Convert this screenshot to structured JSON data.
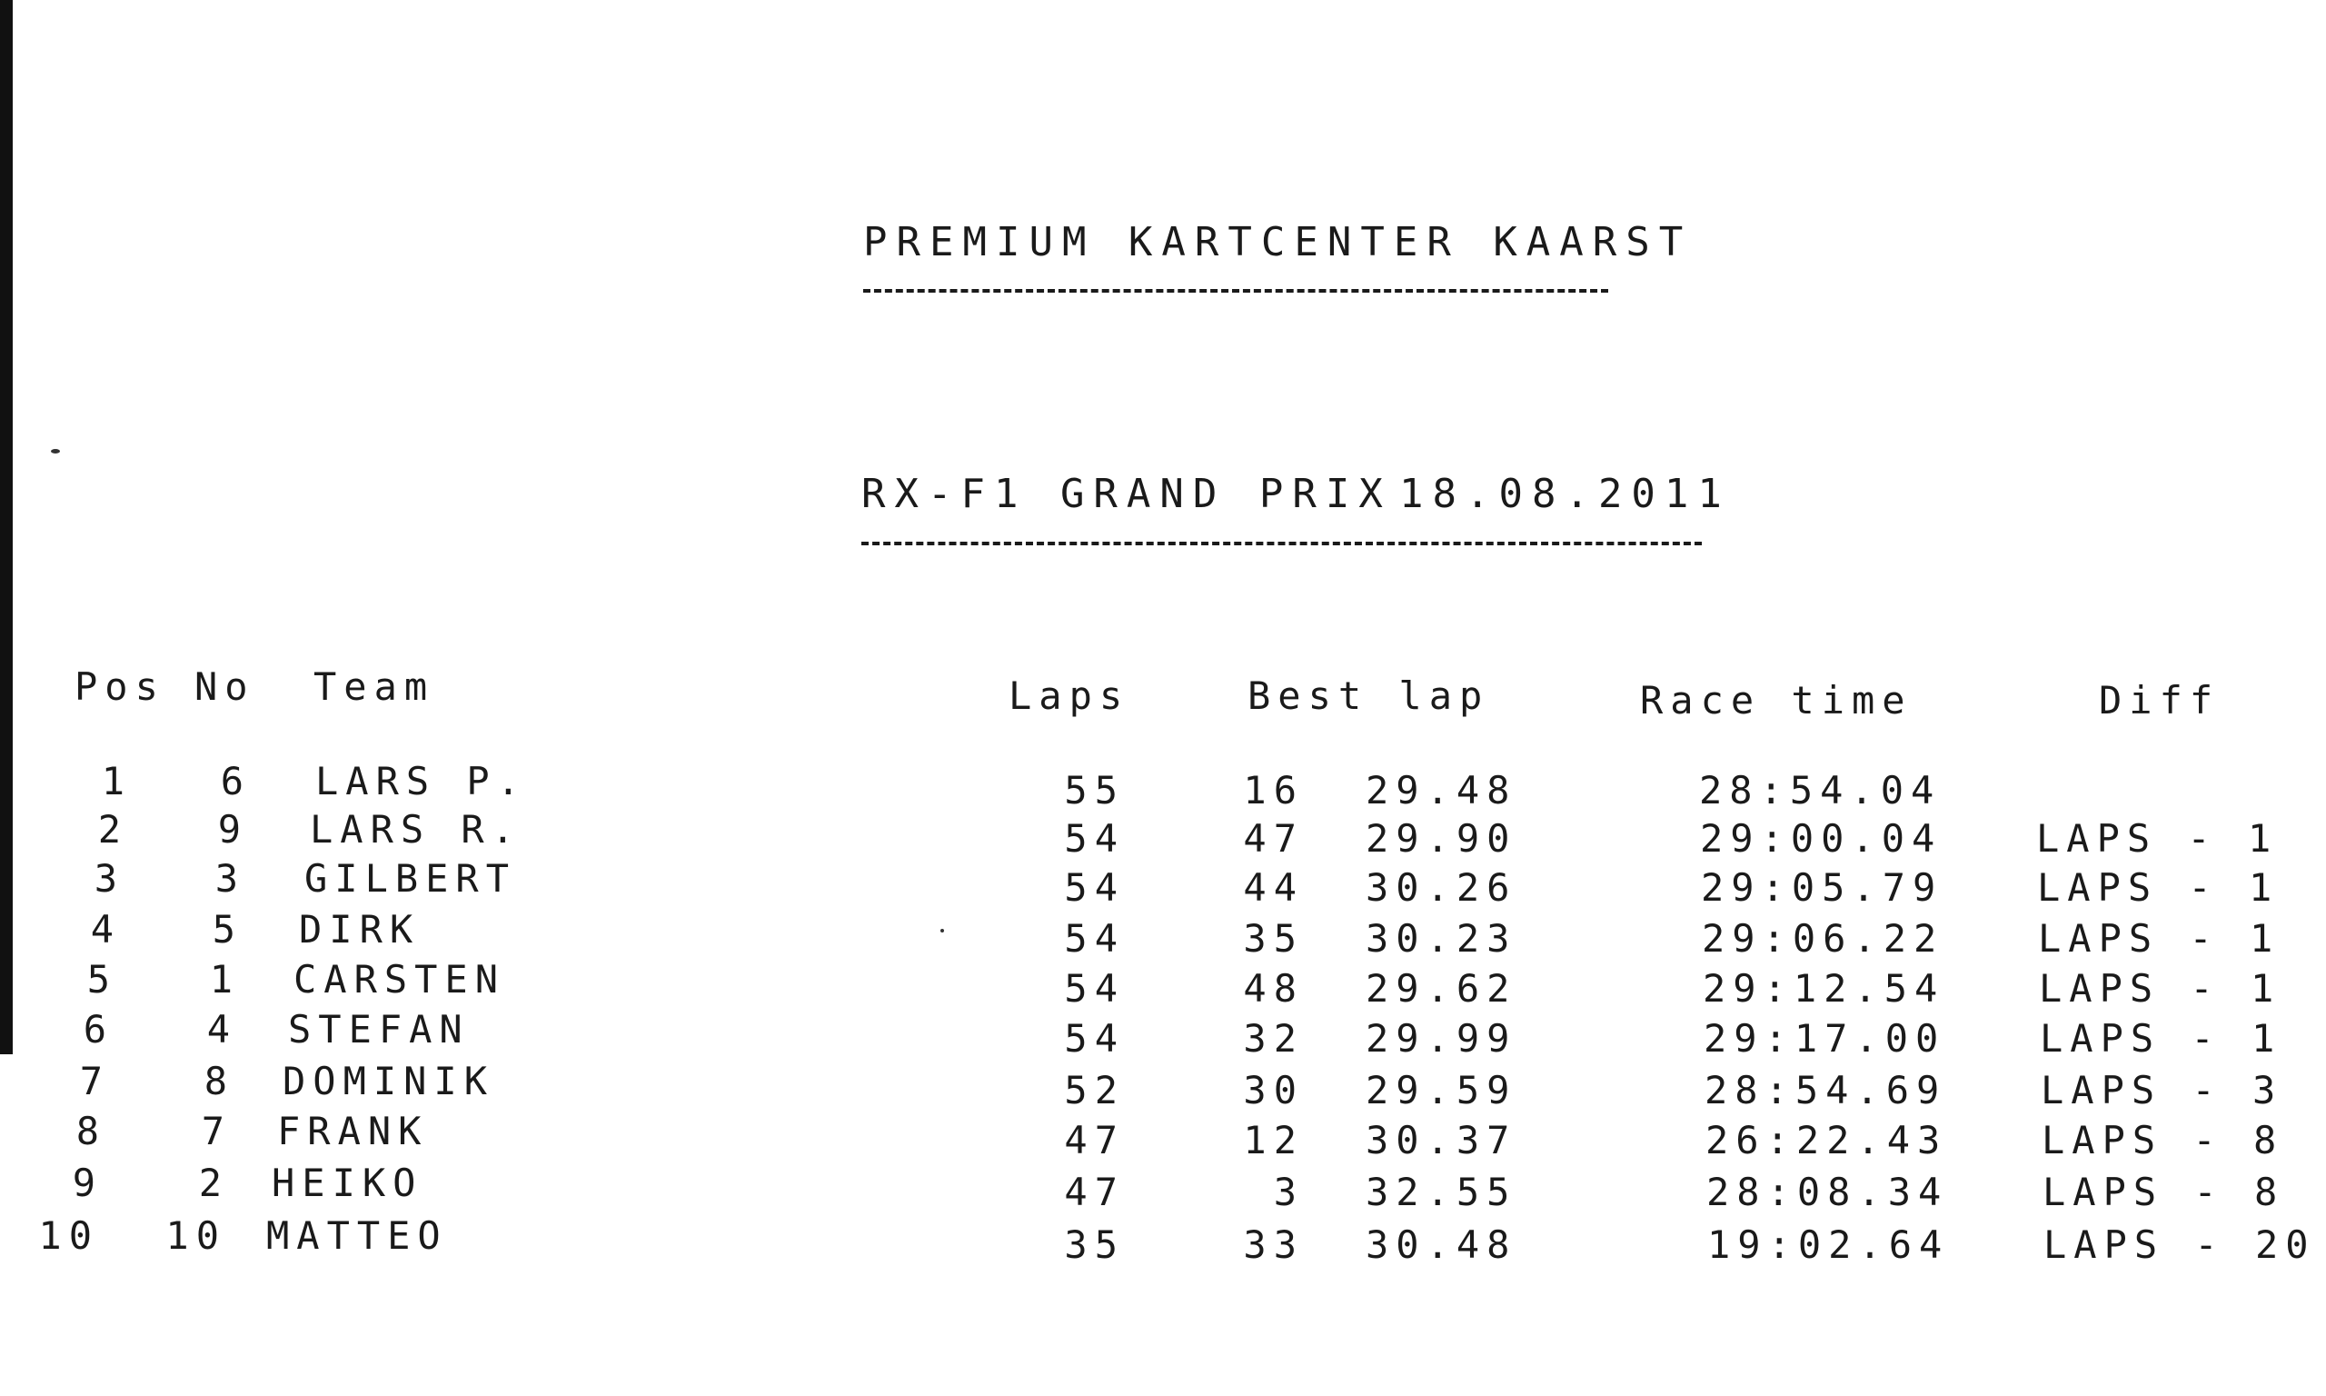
{
  "document": {
    "title": "PREMIUM KARTCENTER KAARST",
    "event": "RX-F1 GRAND PRIX",
    "date": "18.08.2011"
  },
  "table": {
    "headers": {
      "pos": "Pos",
      "no": "No",
      "team": "Team",
      "laps": "Laps",
      "best_lap": "Best lap",
      "race_time": "Race time",
      "diff": "Diff"
    },
    "rows": [
      {
        "pos": "1",
        "no": "6",
        "team": "LARS P.",
        "laps": "55",
        "best_lap_no": "16",
        "best_lap_time": "29.48",
        "race_time": "28:54.04",
        "diff": ""
      },
      {
        "pos": "2",
        "no": "9",
        "team": "LARS R.",
        "laps": "54",
        "best_lap_no": "47",
        "best_lap_time": "29.90",
        "race_time": "29:00.04",
        "diff": "LAPS - 1"
      },
      {
        "pos": "3",
        "no": "3",
        "team": "GILBERT",
        "laps": "54",
        "best_lap_no": "44",
        "best_lap_time": "30.26",
        "race_time": "29:05.79",
        "diff": "LAPS - 1"
      },
      {
        "pos": "4",
        "no": "5",
        "team": "DIRK",
        "laps": "54",
        "best_lap_no": "35",
        "best_lap_time": "30.23",
        "race_time": "29:06.22",
        "diff": "LAPS - 1"
      },
      {
        "pos": "5",
        "no": "1",
        "team": "CARSTEN",
        "laps": "54",
        "best_lap_no": "48",
        "best_lap_time": "29.62",
        "race_time": "29:12.54",
        "diff": "LAPS - 1"
      },
      {
        "pos": "6",
        "no": "4",
        "team": "STEFAN",
        "laps": "54",
        "best_lap_no": "32",
        "best_lap_time": "29.99",
        "race_time": "29:17.00",
        "diff": "LAPS - 1"
      },
      {
        "pos": "7",
        "no": "8",
        "team": "DOMINIK",
        "laps": "52",
        "best_lap_no": "30",
        "best_lap_time": "29.59",
        "race_time": "28:54.69",
        "diff": "LAPS - 3"
      },
      {
        "pos": "8",
        "no": "7",
        "team": "FRANK",
        "laps": "47",
        "best_lap_no": "12",
        "best_lap_time": "30.37",
        "race_time": "26:22.43",
        "diff": "LAPS - 8"
      },
      {
        "pos": "9",
        "no": "2",
        "team": "HEIKO",
        "laps": "47",
        "best_lap_no": "3",
        "best_lap_time": "32.55",
        "race_time": "28:08.34",
        "diff": "LAPS - 8"
      },
      {
        "pos": "10",
        "no": "10",
        "team": "MATTEO",
        "laps": "35",
        "best_lap_no": "33",
        "best_lap_time": "30.48",
        "race_time": "19:02.64",
        "diff": "LAPS - 20"
      }
    ]
  },
  "colors": {
    "ink": "#1a1a1a",
    "paper": "#ffffff"
  }
}
